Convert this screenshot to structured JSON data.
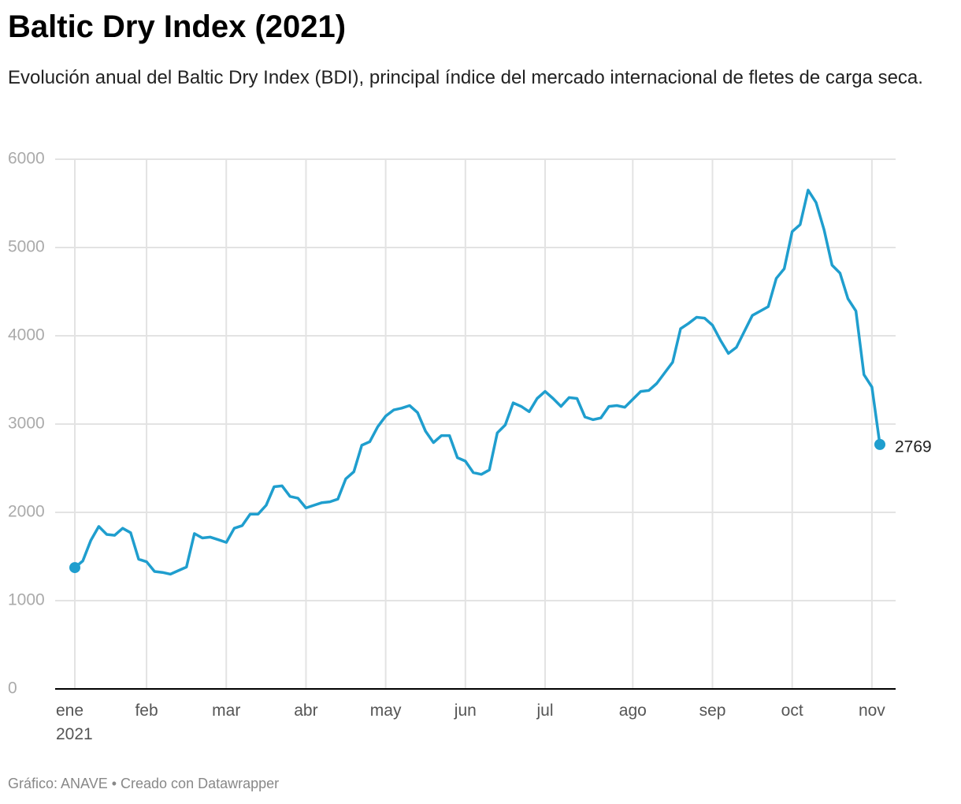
{
  "chart_data": {
    "type": "line",
    "title": "Baltic Dry Index (2021)",
    "subtitle": "Evolución anual del Baltic Dry Index (BDI), principal índice del mercado internacional de fletes de carga seca.",
    "footer": "Gráfico: ANAVE • Creado con Datawrapper",
    "categories": [
      "ene\n2021",
      null,
      null,
      null,
      null,
      null,
      null,
      null,
      null,
      "feb",
      null,
      null,
      null,
      null,
      null,
      null,
      null,
      null,
      null,
      "mar",
      null,
      null,
      null,
      null,
      null,
      null,
      null,
      null,
      null,
      "abr",
      null,
      null,
      null,
      null,
      null,
      null,
      null,
      null,
      null,
      "may",
      null,
      null,
      null,
      null,
      null,
      null,
      null,
      null,
      null,
      "jun",
      null,
      null,
      null,
      null,
      null,
      null,
      null,
      null,
      null,
      "jul",
      null,
      null,
      null,
      null,
      null,
      null,
      null,
      null,
      null,
      null,
      "ago",
      null,
      null,
      null,
      null,
      null,
      null,
      null,
      null,
      null,
      "sep",
      null,
      null,
      null,
      null,
      null,
      null,
      null,
      null,
      null,
      "oct",
      null,
      null,
      null,
      null,
      null,
      null,
      null,
      null,
      null,
      "nov",
      null
    ],
    "series": [
      {
        "name": "BDI",
        "color": "#1f9ece",
        "values": [
          1374,
          1450,
          1680,
          1840,
          1750,
          1740,
          1820,
          1770,
          1470,
          1440,
          1330,
          1320,
          1300,
          1340,
          1380,
          1760,
          1710,
          1720,
          1690,
          1660,
          1820,
          1850,
          1980,
          1980,
          2080,
          2290,
          2300,
          2180,
          2160,
          2050,
          2080,
          2110,
          2120,
          2150,
          2380,
          2460,
          2760,
          2800,
          2970,
          3090,
          3160,
          3180,
          3210,
          3130,
          2920,
          2790,
          2870,
          2870,
          2620,
          2580,
          2450,
          2430,
          2480,
          2900,
          2990,
          3240,
          3200,
          3140,
          3290,
          3370,
          3290,
          3200,
          3300,
          3290,
          3080,
          3050,
          3070,
          3200,
          3210,
          3190,
          3280,
          3370,
          3380,
          3460,
          3580,
          3700,
          4080,
          4140,
          4210,
          4200,
          4120,
          3950,
          3800,
          3870,
          4050,
          4230,
          4280,
          4330,
          4650,
          4760,
          5180,
          5260,
          5650,
          5510,
          5200,
          4800,
          4710,
          4420,
          4280,
          3560,
          3420,
          2769
        ]
      }
    ],
    "ylim": [
      0,
      6000
    ],
    "yticks": [
      0,
      1000,
      2000,
      3000,
      4000,
      5000,
      6000
    ],
    "grid": true
  }
}
